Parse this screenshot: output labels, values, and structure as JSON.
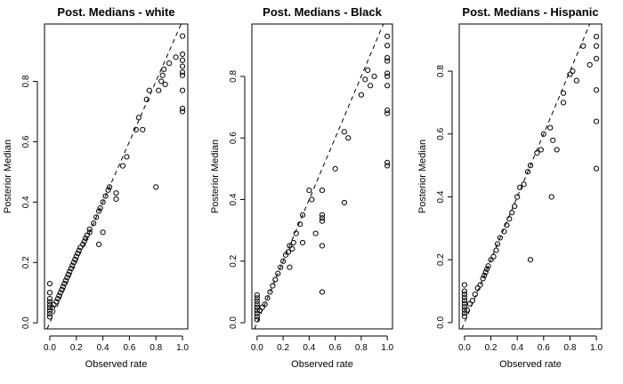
{
  "chart_data": [
    {
      "type": "scatter",
      "title": "Post. Medians - white",
      "xlabel": "Observed rate",
      "ylabel": "Posterior Median",
      "xlim": [
        -0.04,
        1.04
      ],
      "ylim": [
        -0.02,
        0.99
      ],
      "xticks": [
        "0.0",
        "0.2",
        "0.4",
        "0.6",
        "0.8",
        "1.0"
      ],
      "xtick_values": [
        0,
        0.2,
        0.4,
        0.6,
        0.8,
        1.0
      ],
      "yticks": [
        "0.0",
        "0.2",
        "0.4",
        "0.6",
        "0.8"
      ],
      "ytick_values": [
        0,
        0.2,
        0.4,
        0.6,
        0.8
      ],
      "reference_line": "y = x (dashed)",
      "grid": false,
      "x": [
        0,
        0,
        0,
        0,
        0,
        0,
        0,
        0,
        0,
        0.02,
        0.03,
        0.05,
        0.06,
        0.07,
        0.08,
        0.09,
        0.1,
        0.11,
        0.12,
        0.13,
        0.14,
        0.15,
        0.16,
        0.17,
        0.18,
        0.19,
        0.2,
        0.21,
        0.22,
        0.23,
        0.25,
        0.26,
        0.27,
        0.28,
        0.3,
        0.3,
        0.33,
        0.35,
        0.37,
        0.38,
        0.4,
        0.42,
        0.44,
        0.45,
        0.5,
        0.5,
        0.55,
        0.58,
        0.65,
        0.67,
        0.7,
        0.73,
        0.75,
        0.8,
        0.82,
        0.84,
        0.85,
        0.86,
        0.87,
        0.9,
        0.95,
        1.0,
        1.0,
        1.0,
        1.0,
        1.0,
        1.0,
        1.0,
        1.0,
        1.0,
        0.4,
        0.37
      ],
      "y": [
        0.03,
        0.04,
        0.05,
        0.06,
        0.07,
        0.08,
        0.1,
        0.13,
        0.02,
        0.05,
        0.06,
        0.07,
        0.08,
        0.09,
        0.1,
        0.11,
        0.12,
        0.13,
        0.14,
        0.15,
        0.16,
        0.17,
        0.18,
        0.19,
        0.2,
        0.21,
        0.22,
        0.23,
        0.24,
        0.25,
        0.26,
        0.27,
        0.28,
        0.29,
        0.3,
        0.31,
        0.33,
        0.35,
        0.37,
        0.38,
        0.4,
        0.42,
        0.44,
        0.45,
        0.41,
        0.43,
        0.52,
        0.55,
        0.64,
        0.68,
        0.64,
        0.74,
        0.77,
        0.45,
        0.77,
        0.8,
        0.82,
        0.84,
        0.79,
        0.86,
        0.88,
        0.95,
        0.89,
        0.85,
        0.83,
        0.82,
        0.77,
        0.71,
        0.7,
        0.87,
        0.3,
        0.26
      ]
    },
    {
      "type": "scatter",
      "title": "Post. Medians - Black",
      "xlabel": "Observed rate",
      "ylabel": "Posterior Median",
      "xlim": [
        -0.04,
        1.04
      ],
      "ylim": [
        -0.02,
        0.97
      ],
      "xticks": [
        "0.0",
        "0.2",
        "0.4",
        "0.6",
        "0.8",
        "1.0"
      ],
      "xtick_values": [
        0,
        0.2,
        0.4,
        0.6,
        0.8,
        1.0
      ],
      "yticks": [
        "0.0",
        "0.2",
        "0.4",
        "0.6",
        "0.8"
      ],
      "yticks_values_note": "",
      "ytick_values": [
        0,
        0.2,
        0.4,
        0.6,
        0.8
      ],
      "reference_line": "y = x (dashed)",
      "grid": false,
      "x": [
        0,
        0,
        0,
        0,
        0,
        0,
        0,
        0,
        0,
        0.02,
        0.04,
        0.06,
        0.08,
        0.1,
        0.12,
        0.14,
        0.16,
        0.18,
        0.2,
        0.22,
        0.24,
        0.25,
        0.27,
        0.28,
        0.3,
        0.33,
        0.35,
        0.4,
        0.42,
        0.45,
        0.5,
        0.5,
        0.5,
        0.5,
        0.5,
        0.5,
        0.6,
        0.67,
        0.67,
        0.7,
        0.8,
        0.83,
        0.85,
        0.87,
        0.9,
        1.0,
        1.0,
        1.0,
        1.0,
        1.0,
        1.0,
        1.0,
        1.0,
        1.0,
        1.0,
        1.0,
        0.25,
        0.35
      ],
      "y": [
        0.01,
        0.02,
        0.03,
        0.04,
        0.05,
        0.06,
        0.07,
        0.08,
        0.09,
        0.04,
        0.05,
        0.06,
        0.08,
        0.1,
        0.12,
        0.14,
        0.16,
        0.18,
        0.2,
        0.22,
        0.23,
        0.25,
        0.24,
        0.26,
        0.29,
        0.32,
        0.35,
        0.43,
        0.4,
        0.29,
        0.33,
        0.34,
        0.35,
        0.43,
        0.25,
        0.1,
        0.5,
        0.39,
        0.62,
        0.6,
        0.74,
        0.79,
        0.82,
        0.77,
        0.8,
        0.93,
        0.9,
        0.86,
        0.81,
        0.8,
        0.77,
        0.69,
        0.68,
        0.52,
        0.51,
        0.85,
        0.18,
        0.26
      ]
    },
    {
      "type": "scatter",
      "title": "Post. Medians - Hispanic",
      "xlabel": "Observed rate",
      "ylabel": "Posterior Median",
      "xlim": [
        -0.04,
        1.04
      ],
      "ylim": [
        -0.02,
        0.95
      ],
      "xticks": [
        "0.0",
        "0.2",
        "0.4",
        "0.6",
        "0.8",
        "1.0"
      ],
      "xtick_values": [
        0,
        0.2,
        0.4,
        0.6,
        0.8,
        1.0
      ],
      "yticks": [
        "0.0",
        "0.2",
        "0.4",
        "0.6",
        "0.8"
      ],
      "ytick_values": [
        0,
        0.2,
        0.4,
        0.6,
        0.8
      ],
      "reference_line": "y = x (dashed)",
      "grid": false,
      "x": [
        0,
        0,
        0,
        0,
        0,
        0,
        0,
        0,
        0,
        0,
        0.02,
        0.04,
        0.06,
        0.08,
        0.1,
        0.12,
        0.14,
        0.15,
        0.16,
        0.17,
        0.18,
        0.2,
        0.22,
        0.24,
        0.25,
        0.27,
        0.3,
        0.32,
        0.34,
        0.36,
        0.38,
        0.4,
        0.42,
        0.45,
        0.48,
        0.5,
        0.55,
        0.58,
        0.6,
        0.65,
        0.67,
        0.7,
        0.75,
        0.75,
        0.8,
        0.82,
        0.85,
        0.9,
        0.95,
        1.0,
        1.0,
        1.0,
        1.0,
        1.0,
        1.0,
        0.5,
        0.66
      ],
      "y": [
        0.02,
        0.03,
        0.04,
        0.05,
        0.06,
        0.08,
        0.1,
        0.12,
        0.07,
        0.09,
        0.04,
        0.06,
        0.07,
        0.09,
        0.11,
        0.12,
        0.14,
        0.15,
        0.16,
        0.17,
        0.18,
        0.2,
        0.21,
        0.23,
        0.25,
        0.27,
        0.29,
        0.31,
        0.33,
        0.35,
        0.37,
        0.4,
        0.43,
        0.44,
        0.48,
        0.5,
        0.54,
        0.55,
        0.6,
        0.62,
        0.58,
        0.55,
        0.73,
        0.7,
        0.79,
        0.8,
        0.77,
        0.88,
        0.82,
        0.91,
        0.88,
        0.84,
        0.74,
        0.64,
        0.49,
        0.2,
        0.4
      ]
    }
  ]
}
